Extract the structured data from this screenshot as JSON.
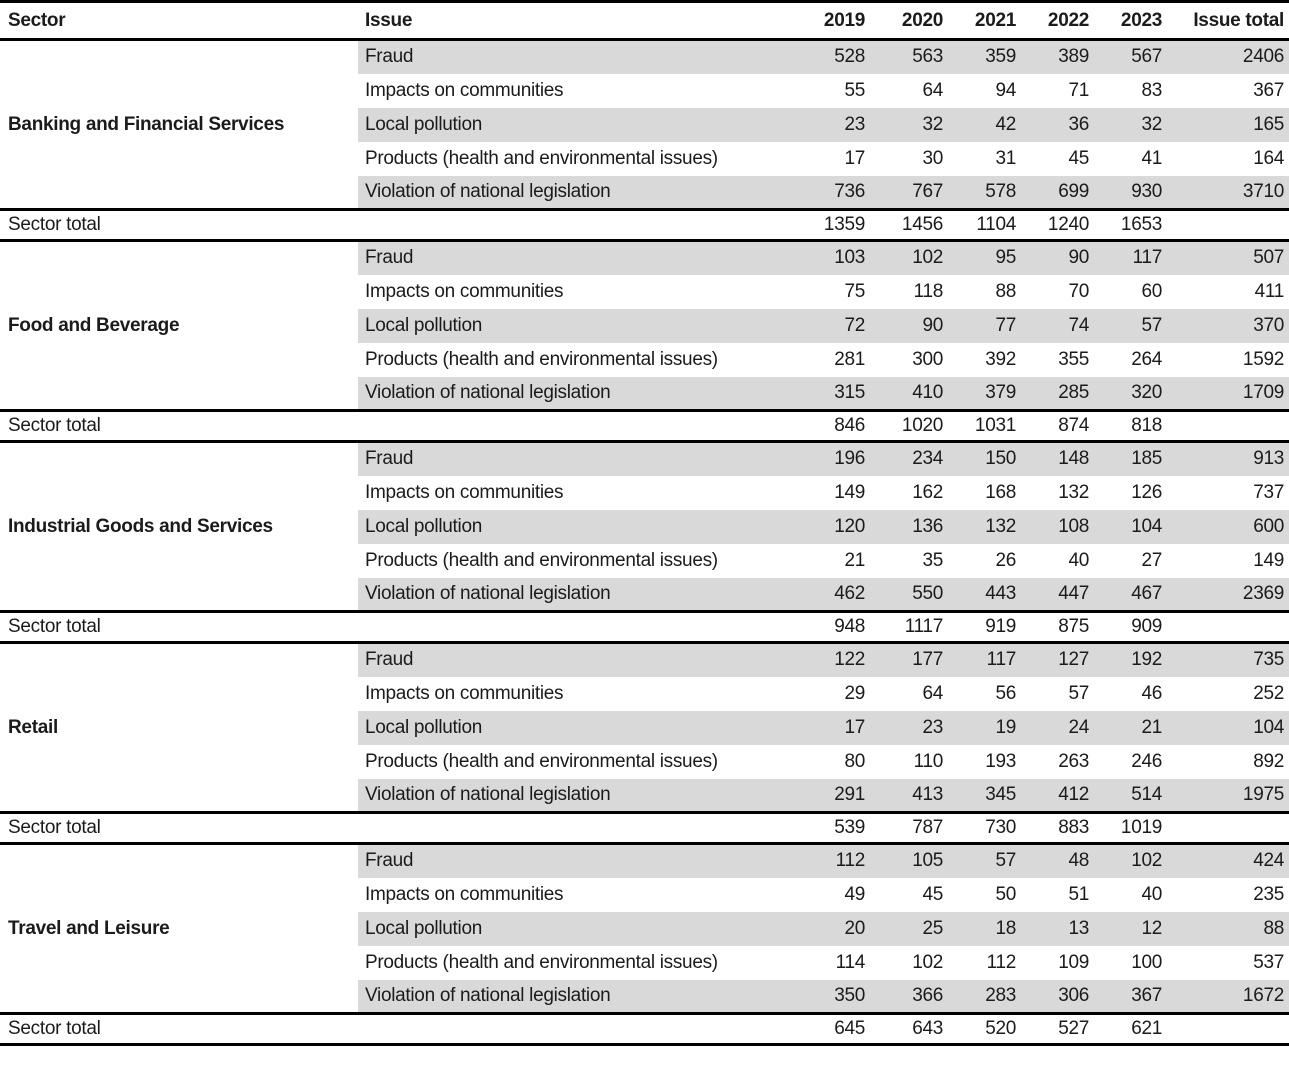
{
  "chart_data": {
    "type": "table",
    "columns": [
      "Sector",
      "Issue",
      "2019",
      "2020",
      "2021",
      "2022",
      "2023",
      "Issue total"
    ],
    "sector_total_label": "Sector total",
    "sectors": [
      {
        "name": "Banking and Financial Services",
        "issues": [
          {
            "issue": "Fraud",
            "values": [
              "528",
              "563",
              "359",
              "389",
              "567"
            ],
            "issue_total": "2406"
          },
          {
            "issue": "Impacts on communities",
            "values": [
              "55",
              "64",
              "94",
              "71",
              "83"
            ],
            "issue_total": "367"
          },
          {
            "issue": "Local pollution",
            "values": [
              "23",
              "32",
              "42",
              "36",
              "32"
            ],
            "issue_total": "165"
          },
          {
            "issue": "Products (health and environmental issues)",
            "values": [
              "17",
              "30",
              "31",
              "45",
              "41"
            ],
            "issue_total": "164"
          },
          {
            "issue": "Violation of national legislation",
            "values": [
              "736",
              "767",
              "578",
              "699",
              "930"
            ],
            "issue_total": "3710"
          }
        ],
        "sector_total": [
          "1359",
          "1456",
          "1104",
          "1240",
          "1653"
        ]
      },
      {
        "name": "Food and Beverage",
        "issues": [
          {
            "issue": "Fraud",
            "values": [
              "103",
              "102",
              "95",
              "90",
              "117"
            ],
            "issue_total": "507"
          },
          {
            "issue": "Impacts on communities",
            "values": [
              "75",
              "118",
              "88",
              "70",
              "60"
            ],
            "issue_total": "411"
          },
          {
            "issue": "Local pollution",
            "values": [
              "72",
              "90",
              "77",
              "74",
              "57"
            ],
            "issue_total": "370"
          },
          {
            "issue": "Products (health and environmental issues)",
            "values": [
              "281",
              "300",
              "392",
              "355",
              "264"
            ],
            "issue_total": "1592"
          },
          {
            "issue": "Violation of national legislation",
            "values": [
              "315",
              "410",
              "379",
              "285",
              "320"
            ],
            "issue_total": "1709"
          }
        ],
        "sector_total": [
          "846",
          "1020",
          "1031",
          "874",
          "818"
        ]
      },
      {
        "name": "Industrial Goods and Services",
        "issues": [
          {
            "issue": "Fraud",
            "values": [
              "196",
              "234",
              "150",
              "148",
              "185"
            ],
            "issue_total": "913"
          },
          {
            "issue": "Impacts on communities",
            "values": [
              "149",
              "162",
              "168",
              "132",
              "126"
            ],
            "issue_total": "737"
          },
          {
            "issue": "Local pollution",
            "values": [
              "120",
              "136",
              "132",
              "108",
              "104"
            ],
            "issue_total": "600"
          },
          {
            "issue": "Products (health and environmental issues)",
            "values": [
              "21",
              "35",
              "26",
              "40",
              "27"
            ],
            "issue_total": "149"
          },
          {
            "issue": "Violation of national legislation",
            "values": [
              "462",
              "550",
              "443",
              "447",
              "467"
            ],
            "issue_total": "2369"
          }
        ],
        "sector_total": [
          "948",
          "1117",
          "919",
          "875",
          "909"
        ]
      },
      {
        "name": "Retail",
        "issues": [
          {
            "issue": "Fraud",
            "values": [
              "122",
              "177",
              "117",
              "127",
              "192"
            ],
            "issue_total": "735"
          },
          {
            "issue": "Impacts on communities",
            "values": [
              "29",
              "64",
              "56",
              "57",
              "46"
            ],
            "issue_total": "252"
          },
          {
            "issue": "Local pollution",
            "values": [
              "17",
              "23",
              "19",
              "24",
              "21"
            ],
            "issue_total": "104"
          },
          {
            "issue": "Products (health and environmental issues)",
            "values": [
              "80",
              "110",
              "193",
              "263",
              "246"
            ],
            "issue_total": "892"
          },
          {
            "issue": "Violation of national legislation",
            "values": [
              "291",
              "413",
              "345",
              "412",
              "514"
            ],
            "issue_total": "1975"
          }
        ],
        "sector_total": [
          "539",
          "787",
          "730",
          "883",
          "1019"
        ]
      },
      {
        "name": "Travel and Leisure",
        "issues": [
          {
            "issue": "Fraud",
            "values": [
              "112",
              "105",
              "57",
              "48",
              "102"
            ],
            "issue_total": "424"
          },
          {
            "issue": "Impacts on communities",
            "values": [
              "49",
              "45",
              "50",
              "51",
              "40"
            ],
            "issue_total": "235"
          },
          {
            "issue": "Local pollution",
            "values": [
              "20",
              "25",
              "18",
              "13",
              "12"
            ],
            "issue_total": "88"
          },
          {
            "issue": "Products (health and environmental issues)",
            "values": [
              "114",
              "102",
              "112",
              "109",
              "100"
            ],
            "issue_total": "537"
          },
          {
            "issue": "Violation of national legislation",
            "values": [
              "350",
              "366",
              "283",
              "306",
              "367"
            ],
            "issue_total": "1672"
          }
        ],
        "sector_total": [
          "645",
          "643",
          "520",
          "527",
          "621"
        ]
      }
    ]
  },
  "colors": {
    "row_shade": "#d9d9d9",
    "border": "#000000",
    "text": "#1b1b1b",
    "background": "#ffffff"
  }
}
